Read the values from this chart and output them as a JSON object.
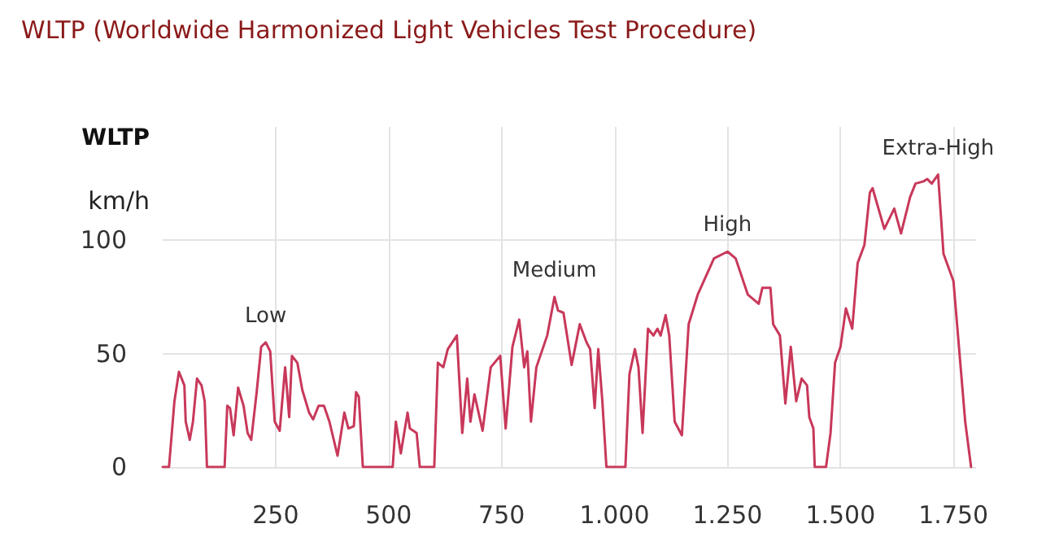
{
  "chart_data": {
    "type": "line",
    "title": "WLTP (Worldwide Harmonized Light Vehicles Test Procedure)",
    "subtitle": "WLTP",
    "ylabel": "km/h",
    "x": [
      0,
      14,
      26,
      36,
      48,
      51,
      60,
      67,
      76,
      86,
      93,
      98,
      137,
      143,
      149,
      157,
      167,
      179,
      188,
      196,
      208,
      218,
      228,
      238,
      248,
      259,
      271,
      280,
      286,
      298,
      309,
      324,
      333,
      345,
      357,
      369,
      387,
      402,
      411,
      423,
      428,
      434,
      443,
      509,
      516,
      527,
      542,
      547,
      562,
      569,
      601,
      609,
      621,
      631,
      651,
      663,
      674,
      681,
      690,
      708,
      726,
      747,
      759,
      774,
      789,
      800,
      807,
      815,
      827,
      851,
      867,
      875,
      887,
      905,
      923,
      938,
      946,
      956,
      964,
      973,
      982,
      1024,
      1033,
      1045,
      1053,
      1062,
      1074,
      1086,
      1095,
      1102,
      1113,
      1121,
      1133,
      1149,
      1164,
      1184,
      1220,
      1250,
      1268,
      1295,
      1319,
      1327,
      1345,
      1351,
      1366,
      1378,
      1390,
      1402,
      1414,
      1426,
      1431,
      1440,
      1443,
      1468,
      1478,
      1488,
      1500,
      1512,
      1526,
      1538,
      1553,
      1565,
      1571,
      1597,
      1619,
      1634,
      1654,
      1666,
      1684,
      1692,
      1702,
      1716,
      1728,
      1750,
      1776,
      1789
    ],
    "series": [
      {
        "color": "#c8385a",
        "values": [
          0,
          0,
          29,
          42,
          36,
          20,
          12,
          20,
          39,
          36,
          29,
          0,
          0,
          27,
          26,
          14,
          35,
          27,
          15,
          12,
          33,
          53,
          55,
          51,
          20,
          16,
          44,
          22,
          49,
          46,
          34,
          24,
          21,
          27,
          27,
          20,
          5,
          24,
          17,
          18,
          33,
          31,
          0,
          0,
          20,
          6,
          24,
          17,
          15,
          0,
          0,
          46,
          44,
          52,
          58,
          15,
          39,
          20,
          32,
          16,
          44,
          49,
          17,
          53,
          65,
          44,
          51,
          20,
          44,
          58,
          75,
          69,
          68,
          45,
          63,
          55,
          52,
          26,
          52,
          29,
          0,
          0,
          41,
          52,
          44,
          15,
          61,
          58,
          61,
          58,
          67,
          58,
          20,
          14,
          63,
          76,
          92,
          95,
          92,
          76,
          72,
          79,
          79,
          63,
          58,
          28,
          53,
          29,
          39,
          36,
          22,
          17,
          0,
          0,
          15,
          46,
          53,
          70,
          61,
          90,
          98,
          121,
          123,
          105,
          114,
          103,
          119,
          125,
          126,
          127,
          125,
          129,
          94,
          82,
          20,
          0
        ]
      }
    ],
    "xlim": [
      0,
      1800
    ],
    "xticks": [
      250,
      500,
      750,
      {
        "value": 1000,
        "label": "1.000"
      },
      {
        "value": 1250,
        "label": "1.250"
      },
      {
        "value": 1500,
        "label": "1.500"
      },
      {
        "value": 1750,
        "label": "1.750"
      }
    ],
    "ylim": [
      0,
      150
    ],
    "yticks": [
      0,
      50,
      100
    ],
    "grid": true,
    "marker": "none",
    "line_style": "solid",
    "annotations": [
      "Low",
      "Medium",
      "High",
      "Extra-High"
    ]
  }
}
